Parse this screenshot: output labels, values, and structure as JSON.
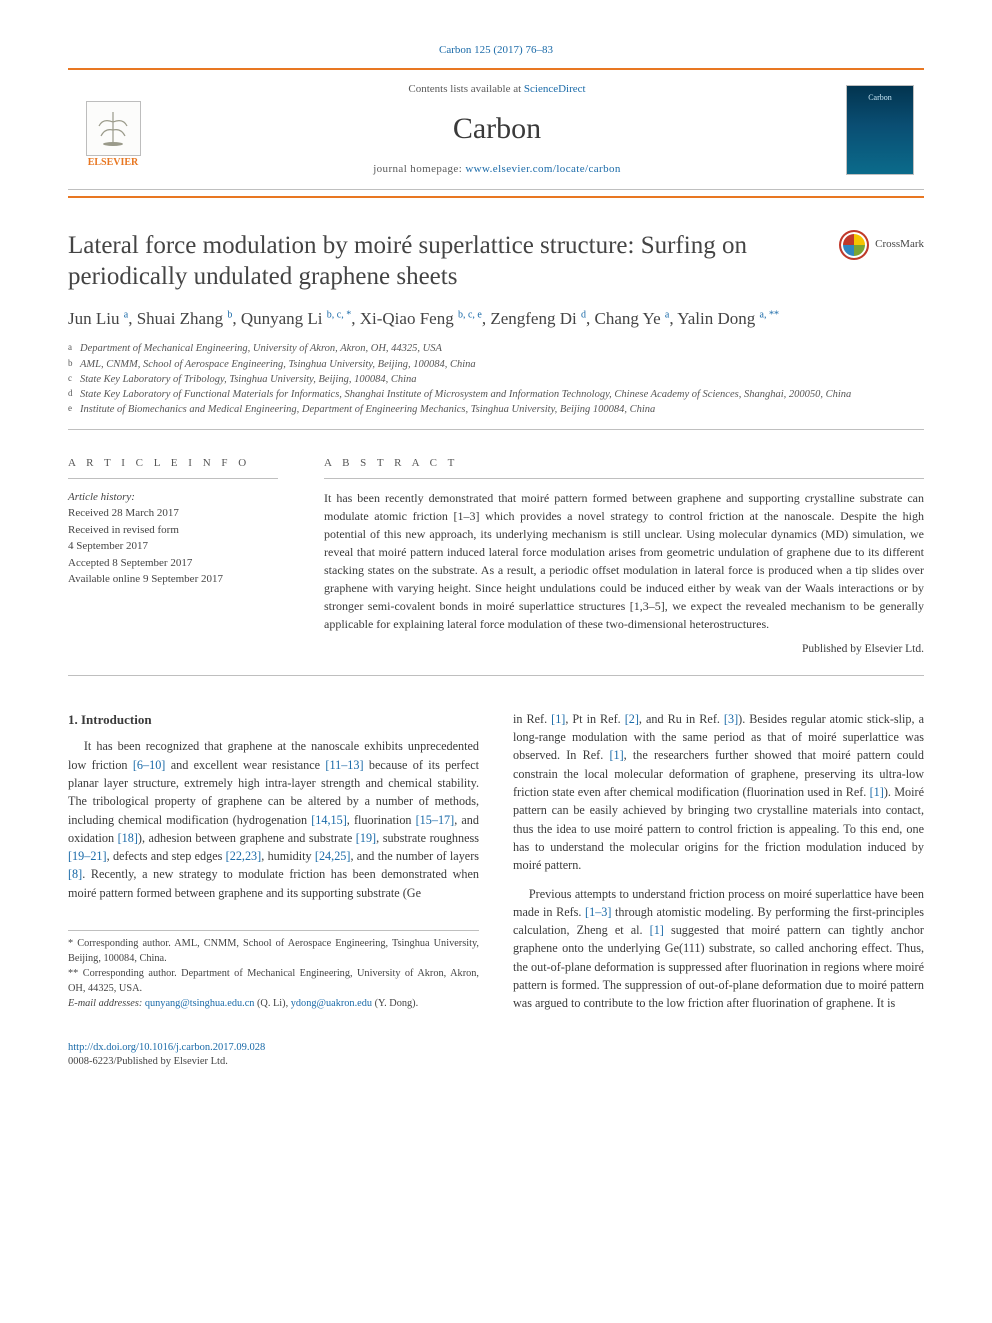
{
  "journal_ref": "Carbon 125 (2017) 76–83",
  "header": {
    "contents_line_prefix": "Contents lists available at ",
    "contents_link": "ScienceDirect",
    "journal_name": "Carbon",
    "homepage_prefix": "journal homepage: ",
    "homepage_link": "www.elsevier.com/locate/carbon",
    "publisher_mark": "ELSEVIER",
    "cover_label": "Carbon"
  },
  "crossmark_label": "CrossMark",
  "title": "Lateral force modulation by moiré superlattice structure: Surfing on periodically undulated graphene sheets",
  "authors_html_parts": [
    {
      "name": "Jun Liu",
      "sup": "a"
    },
    {
      "name": "Shuai Zhang",
      "sup": "b"
    },
    {
      "name": "Qunyang Li",
      "sup": "b, c, *"
    },
    {
      "name": "Xi-Qiao Feng",
      "sup": "b, c, e"
    },
    {
      "name": "Zengfeng Di",
      "sup": "d"
    },
    {
      "name": "Chang Ye",
      "sup": "a"
    },
    {
      "name": "Yalin Dong",
      "sup": "a, **"
    }
  ],
  "affiliations": [
    {
      "lbl": "a",
      "text": "Department of Mechanical Engineering, University of Akron, Akron, OH, 44325, USA"
    },
    {
      "lbl": "b",
      "text": "AML, CNMM, School of Aerospace Engineering, Tsinghua University, Beijing, 100084, China"
    },
    {
      "lbl": "c",
      "text": "State Key Laboratory of Tribology, Tsinghua University, Beijing, 100084, China"
    },
    {
      "lbl": "d",
      "text": "State Key Laboratory of Functional Materials for Informatics, Shanghai Institute of Microsystem and Information Technology, Chinese Academy of Sciences, Shanghai, 200050, China"
    },
    {
      "lbl": "e",
      "text": "Institute of Biomechanics and Medical Engineering, Department of Engineering Mechanics, Tsinghua University, Beijing 100084, China"
    }
  ],
  "article_info_head": "A R T I C L E  I N F O",
  "abstract_head": "A B S T R A C T",
  "history": {
    "head": "Article history:",
    "received": "Received 28 March 2017",
    "revised": "Received in revised form",
    "revised_date": "4 September 2017",
    "accepted": "Accepted 8 September 2017",
    "online": "Available online 9 September 2017"
  },
  "abstract_text": "It has been recently demonstrated that moiré pattern formed between graphene and supporting crystalline substrate can modulate atomic friction [1–3] which provides a novel strategy to control friction at the nanoscale. Despite the high potential of this new approach, its underlying mechanism is still unclear. Using molecular dynamics (MD) simulation, we reveal that moiré pattern induced lateral force modulation arises from geometric undulation of graphene due to its different stacking states on the substrate. As a result, a periodic offset modulation in lateral force is produced when a tip slides over graphene with varying height. Since height undulations could be induced either by weak van der Waals interactions or by stronger semi-covalent bonds in moiré superlattice structures [1,3–5], we expect the revealed mechanism to be generally applicable for explaining lateral force modulation of these two-dimensional heterostructures.",
  "pub_line": "Published by Elsevier Ltd.",
  "intro_head": "1. Introduction",
  "col1": {
    "p1_a": "It has been recognized that graphene at the nanoscale exhibits unprecedented low friction ",
    "r1": "[6–10]",
    "p1_b": " and excellent wear resistance ",
    "r2": "[11–13]",
    "p1_c": " because of its perfect planar layer structure, extremely high intra-layer strength and chemical stability. The tribological property of graphene can be altered by a number of methods, including chemical modification (hydrogenation ",
    "r3": "[14,15]",
    "p1_d": ", fluorination ",
    "r4": "[15–17]",
    "p1_e": ", and oxidation ",
    "r5": "[18]",
    "p1_f": "), adhesion between graphene and substrate ",
    "r6": "[19]",
    "p1_g": ", substrate roughness ",
    "r7": "[19–21]",
    "p1_h": ", defects and step edges ",
    "r8": "[22,23]",
    "p1_i": ", humidity ",
    "r9": "[24,25]",
    "p1_j": ", and the number of layers ",
    "r10": "[8]",
    "p1_k": ". Recently, a new strategy to modulate friction has been demonstrated when moiré pattern formed between graphene and its supporting substrate (Ge"
  },
  "col2": {
    "p1_a": "in Ref. ",
    "r1": "[1]",
    "p1_b": ", Pt in Ref. ",
    "r2": "[2]",
    "p1_c": ", and Ru in Ref. ",
    "r3": "[3]",
    "p1_d": "). Besides regular atomic stick-slip, a long-range modulation with the same period as that of moiré superlattice was observed. In Ref. ",
    "r4": "[1]",
    "p1_e": ", the researchers further showed that moiré pattern could constrain the local molecular deformation of graphene, preserving its ultra-low friction state even after chemical modification (fluorination used in Ref. ",
    "r5": "[1]",
    "p1_f": "). Moiré pattern can be easily achieved by bringing two crystalline materials into contact, thus the idea to use moiré pattern to control friction is appealing. To this end, one has to understand the molecular origins for the friction modulation induced by moiré pattern.",
    "p2_a": "Previous attempts to understand friction process on moiré superlattice have been made in Refs. ",
    "r6": "[1–3]",
    "p2_b": " through atomistic modeling. By performing the first-principles calculation, Zheng et al. ",
    "r7": "[1]",
    "p2_c": " suggested that moiré pattern can tightly anchor graphene onto the underlying Ge(111) substrate, so called anchoring effect. Thus, the out-of-plane deformation is suppressed after fluorination in regions where moiré pattern is formed. The suppression of out-of-plane deformation due to moiré pattern was argued to contribute to the low friction after fluorination of graphene. It is"
  },
  "footnotes": {
    "c1": "* Corresponding author. AML, CNMM, School of Aerospace Engineering, Tsinghua University, Beijing, 100084, China.",
    "c2": "** Corresponding author. Department of Mechanical Engineering, University of Akron, Akron, OH, 44325, USA.",
    "em_label": "E-mail addresses:",
    "em1": "qunyang@tsinghua.edu.cn",
    "em1_name": " (Q. Li), ",
    "em2": "ydong@uakron.edu",
    "em2_name": " (Y. Dong)."
  },
  "footer": {
    "doi": "http://dx.doi.org/10.1016/j.carbon.2017.09.028",
    "issn": "0008-6223/Published by Elsevier Ltd."
  },
  "colors": {
    "link": "#1a6aa8",
    "accent": "#e87722",
    "rule": "#bfbfbf",
    "text": "#3a3a3a"
  }
}
